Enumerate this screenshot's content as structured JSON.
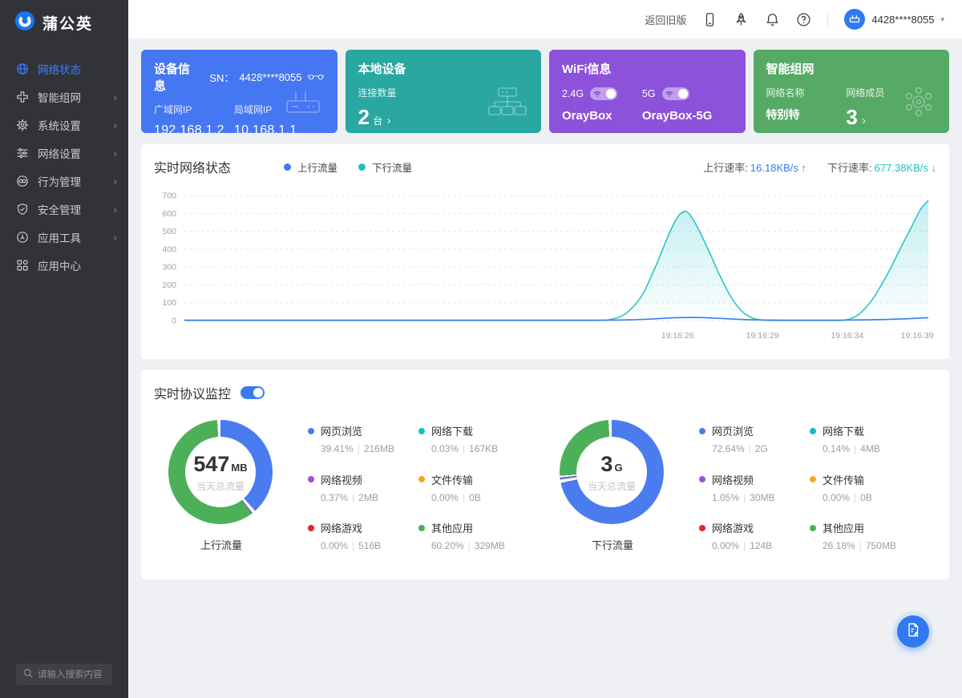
{
  "brand": {
    "name": "蒲公英"
  },
  "sidebar": {
    "items": [
      {
        "id": "network-status",
        "icon": "globe-icon",
        "label": "网络状态",
        "active": true,
        "arrow": false
      },
      {
        "id": "smart-network",
        "icon": "mesh-icon",
        "label": "智能组网",
        "active": false,
        "arrow": true
      },
      {
        "id": "system-settings",
        "icon": "gear-icon",
        "label": "系统设置",
        "active": false,
        "arrow": true
      },
      {
        "id": "network-settings",
        "icon": "sliders-icon",
        "label": "网络设置",
        "active": false,
        "arrow": true
      },
      {
        "id": "behavior-management",
        "icon": "behavior-icon",
        "label": "行为管理",
        "active": false,
        "arrow": true
      },
      {
        "id": "security-management",
        "icon": "shield-icon",
        "label": "安全管理",
        "active": false,
        "arrow": true
      },
      {
        "id": "app-tools",
        "icon": "tools-icon",
        "label": "应用工具",
        "active": false,
        "arrow": true
      },
      {
        "id": "app-center",
        "icon": "grid-icon",
        "label": "应用中心",
        "active": false,
        "arrow": false
      }
    ],
    "search_placeholder": "请输入搜索内容"
  },
  "header": {
    "back_label": "返回旧版",
    "icons": [
      "phone-icon",
      "rocket-icon",
      "bell-icon",
      "help-icon"
    ],
    "account": "4428****8055",
    "caret": "▾"
  },
  "cards": {
    "device": {
      "title": "设备信息",
      "sn_label": "SN：",
      "sn_value": "4428****8055",
      "wan_label": "广域网IP",
      "wan_value": "192.168.1.2",
      "lan_label": "局域网IP",
      "lan_value": "10.168.1.1",
      "bg": "#4677f2"
    },
    "local": {
      "title": "本地设备",
      "count_label": "连接数量",
      "count_value": "2",
      "count_unit": "台",
      "chev": "›",
      "bg": "#2aa7a1"
    },
    "wifi": {
      "title": "WiFi信息",
      "band1_label": "2.4G",
      "ssid1": "OrayBox",
      "band2_label": "5G",
      "ssid2": "OrayBox-5G",
      "toggle1_on": true,
      "toggle2_on": true,
      "bg": "#8c52da"
    },
    "mesh": {
      "title": "智能组网",
      "name_label": "网络名称",
      "name_value": "特别特",
      "members_label": "网络成员",
      "members_value": "3",
      "chev": "›",
      "bg": "#57aa66"
    }
  },
  "network_panel": {
    "title": "实时网络状态",
    "legend": [
      {
        "label": "上行流量",
        "color": "#3a7bf0"
      },
      {
        "label": "下行流量",
        "color": "#1fc0c3"
      }
    ],
    "up_rate_label": "上行速率:",
    "up_rate_value": "16.18KB/s",
    "up_arrow": "↑",
    "accent_up": "#3a7bf0",
    "down_rate_label": "下行速率:",
    "down_rate_value": "677.38KB/s",
    "down_arrow": "↓",
    "accent_down": "#1fc0c3"
  },
  "protocol_panel": {
    "title": "实时协议监控",
    "toggle_on": true
  },
  "chart_data": [
    {
      "type": "line",
      "title": "实时网络状态",
      "ylim": [
        0,
        700
      ],
      "y_ticks": [
        0,
        100,
        200,
        300,
        400,
        500,
        600,
        700
      ],
      "x_labels": [
        {
          "pos": 0.663,
          "label": "19:16:26"
        },
        {
          "pos": 0.777,
          "label": "19:16:29"
        },
        {
          "pos": 0.891,
          "label": "19:16:34"
        },
        {
          "pos": 0.993,
          "label": "19:16:39"
        }
      ],
      "grid": true,
      "legend_position": "top",
      "series": [
        {
          "name": "下行流量",
          "color": "#2cc5c8",
          "area": true,
          "points": [
            [
              0,
              1
            ],
            [
              0.08,
              1
            ],
            [
              0.16,
              1
            ],
            [
              0.24,
              1
            ],
            [
              0.32,
              1
            ],
            [
              0.4,
              1
            ],
            [
              0.48,
              1
            ],
            [
              0.55,
              1
            ],
            [
              0.575,
              8
            ],
            [
              0.595,
              45
            ],
            [
              0.615,
              140
            ],
            [
              0.632,
              290
            ],
            [
              0.648,
              450
            ],
            [
              0.66,
              560
            ],
            [
              0.67,
              608
            ],
            [
              0.678,
              600
            ],
            [
              0.69,
              520
            ],
            [
              0.705,
              390
            ],
            [
              0.72,
              250
            ],
            [
              0.735,
              130
            ],
            [
              0.75,
              50
            ],
            [
              0.765,
              12
            ],
            [
              0.778,
              2
            ],
            [
              0.8,
              1
            ],
            [
              0.83,
              1
            ],
            [
              0.86,
              1
            ],
            [
              0.885,
              1
            ],
            [
              0.905,
              30
            ],
            [
              0.925,
              120
            ],
            [
              0.945,
              260
            ],
            [
              0.962,
              400
            ],
            [
              0.978,
              530
            ],
            [
              0.99,
              625
            ],
            [
              1,
              672
            ]
          ]
        },
        {
          "name": "上行流量",
          "color": "#3a7bf0",
          "area": false,
          "points": [
            [
              0,
              2
            ],
            [
              0.08,
              2
            ],
            [
              0.16,
              2
            ],
            [
              0.24,
              2
            ],
            [
              0.32,
              2
            ],
            [
              0.4,
              2
            ],
            [
              0.48,
              2
            ],
            [
              0.56,
              2
            ],
            [
              0.6,
              4
            ],
            [
              0.63,
              9
            ],
            [
              0.66,
              16
            ],
            [
              0.69,
              17
            ],
            [
              0.72,
              12
            ],
            [
              0.75,
              6
            ],
            [
              0.78,
              3
            ],
            [
              0.82,
              2
            ],
            [
              0.86,
              2
            ],
            [
              0.9,
              3
            ],
            [
              0.94,
              6
            ],
            [
              0.97,
              10
            ],
            [
              1,
              16
            ]
          ]
        }
      ]
    },
    {
      "type": "pie",
      "title": "上行流量",
      "center_value": "547",
      "center_unit": "MB",
      "center_sub": "当天总流量",
      "slices": [
        {
          "label": "网页浏览",
          "color": "#4a7cf0",
          "value": 39.41,
          "pct": "39.41%",
          "size": "216MB"
        },
        {
          "label": "网络下载",
          "color": "#16bdc0",
          "value": 0.03,
          "pct": "0.03%",
          "size": "167KB"
        },
        {
          "label": "网络视频",
          "color": "#9b51e0",
          "value": 0.37,
          "pct": "0.37%",
          "size": "2MB"
        },
        {
          "label": "文件传输",
          "color": "#f5a623",
          "value": 0,
          "pct": "0.00%",
          "size": "0B"
        },
        {
          "label": "网络游戏",
          "color": "#e7232d",
          "value": 0,
          "pct": "0.00%",
          "size": "516B"
        },
        {
          "label": "其他应用",
          "color": "#4cb058",
          "value": 60.2,
          "pct": "60.20%",
          "size": "329MB"
        }
      ]
    },
    {
      "type": "pie",
      "title": "下行流量",
      "center_value": "3",
      "center_unit": "G",
      "center_sub": "当天总流量",
      "slices": [
        {
          "label": "网页浏览",
          "color": "#4a7cf0",
          "value": 72.64,
          "pct": "72.64%",
          "size": "2G"
        },
        {
          "label": "网络下载",
          "color": "#16bdc0",
          "value": 0.14,
          "pct": "0.14%",
          "size": "4MB"
        },
        {
          "label": "网络视频",
          "color": "#9b51e0",
          "value": 1.05,
          "pct": "1.05%",
          "size": "30MB"
        },
        {
          "label": "文件传输",
          "color": "#f5a623",
          "value": 0,
          "pct": "0.00%",
          "size": "0B"
        },
        {
          "label": "网络游戏",
          "color": "#e7232d",
          "value": 0,
          "pct": "0.00%",
          "size": "124B"
        },
        {
          "label": "其他应用",
          "color": "#4cb058",
          "value": 26.18,
          "pct": "26.18%",
          "size": "750MB"
        }
      ]
    }
  ]
}
